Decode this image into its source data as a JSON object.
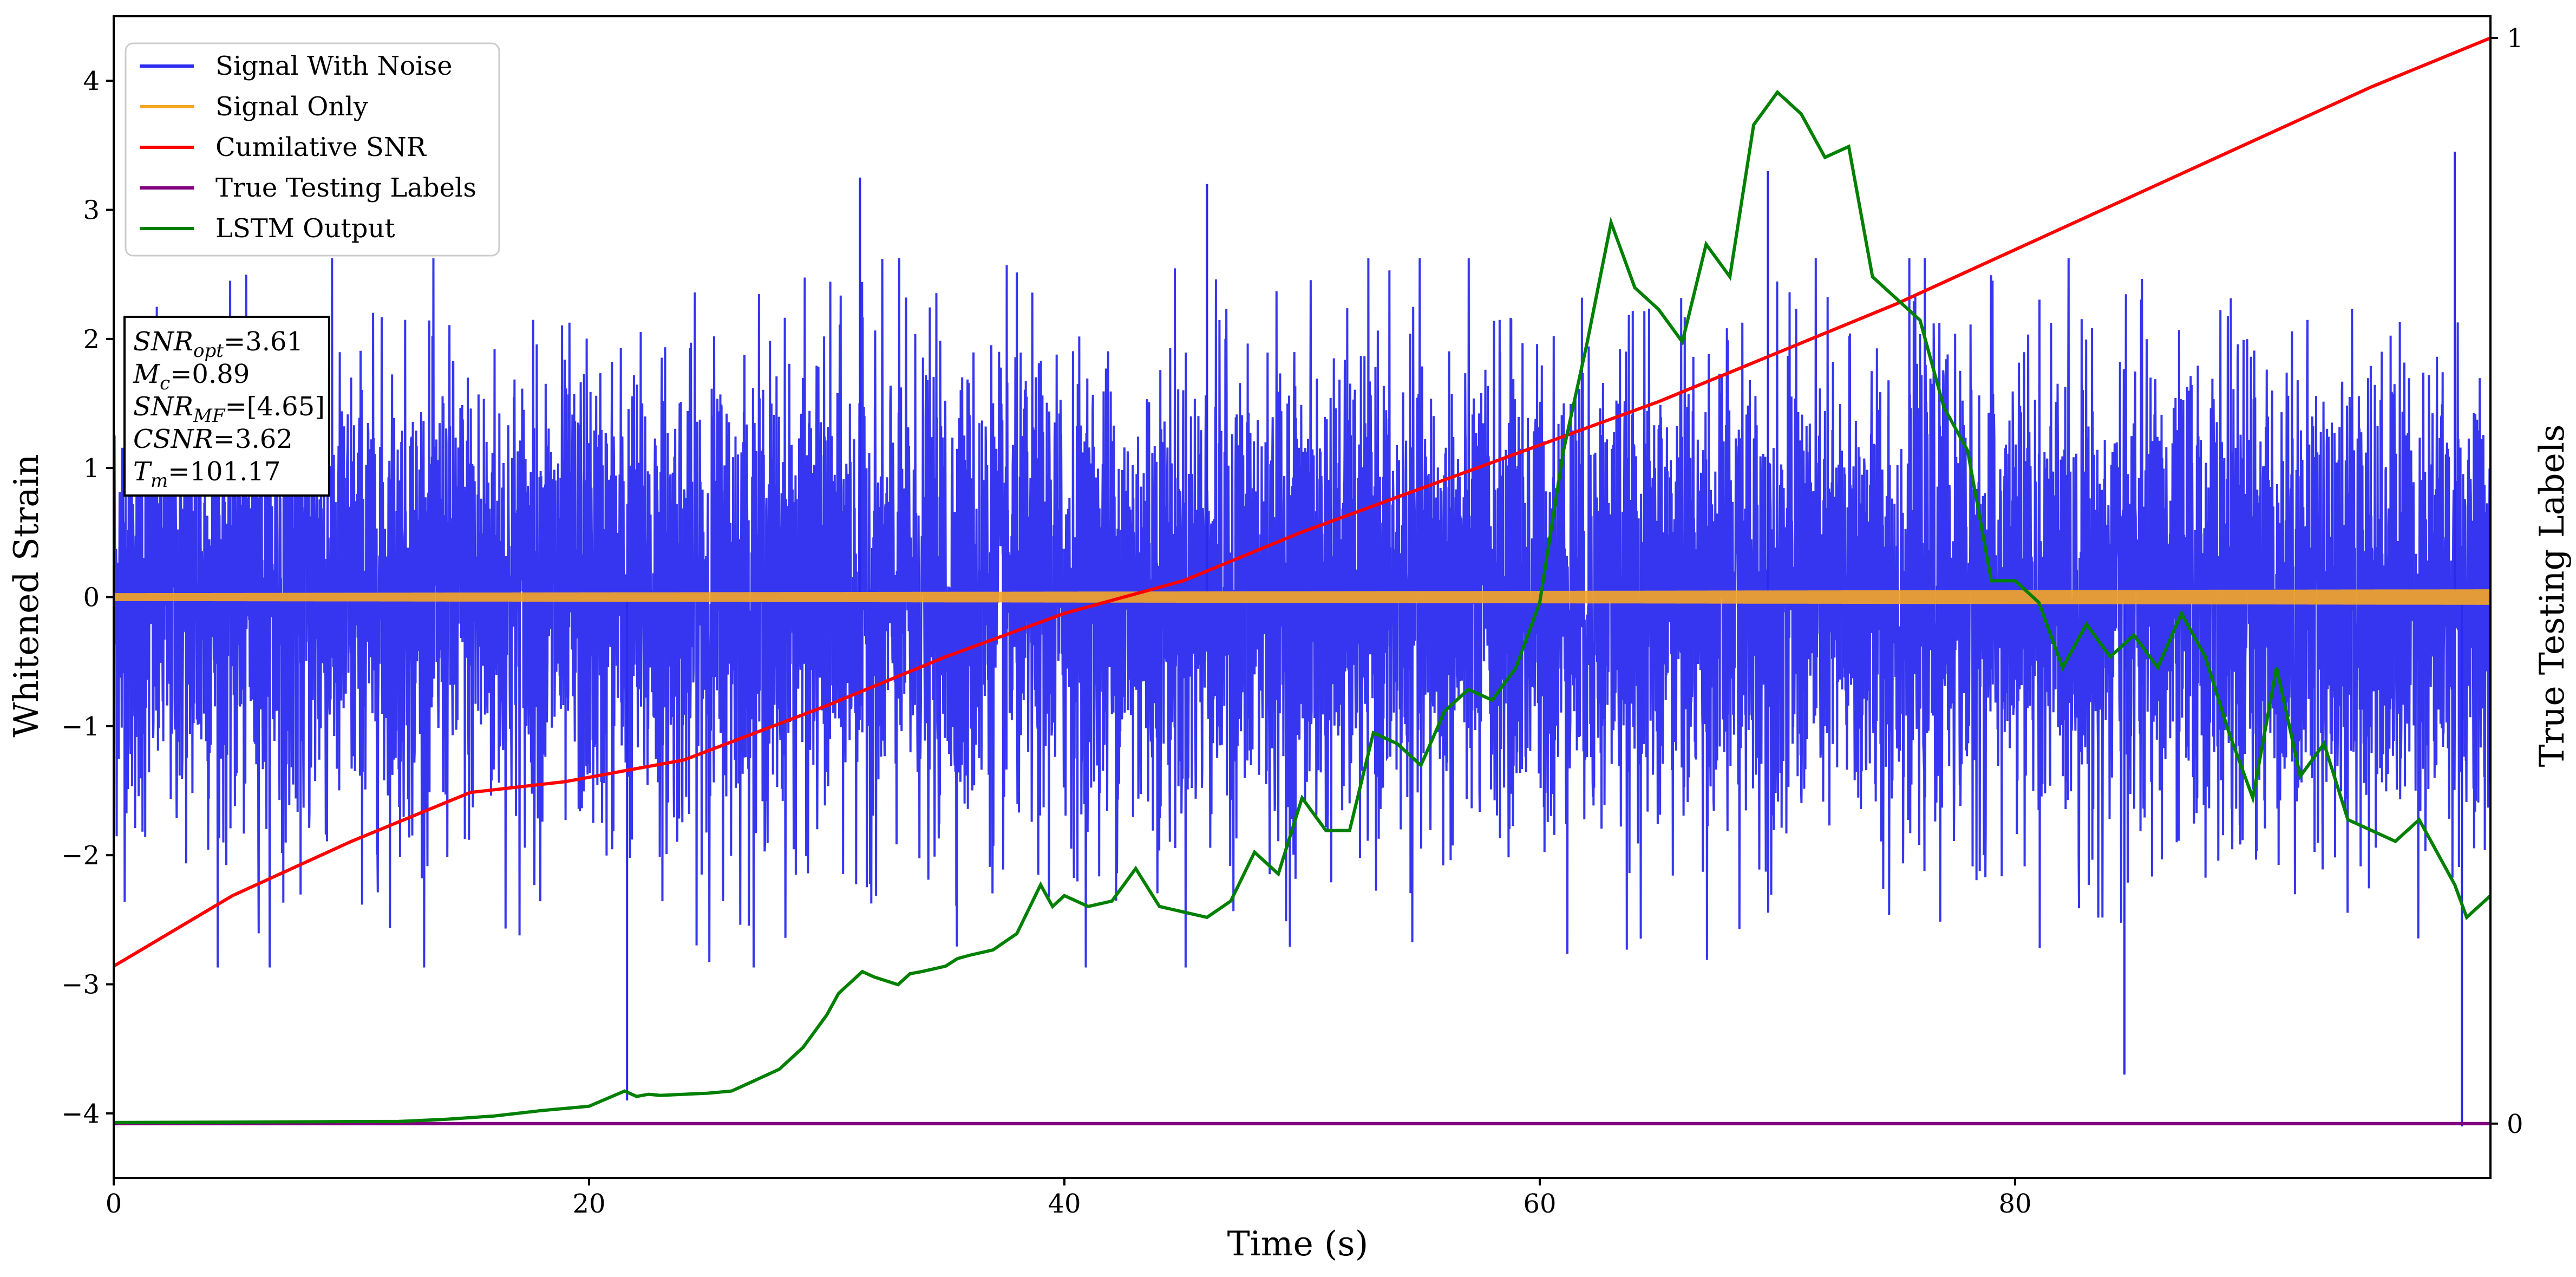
{
  "chart_data": {
    "type": "line",
    "xlabel": "Time (s)",
    "ylabel": "Whitened Strain",
    "y2label": "True Testing Labels",
    "xlim": [
      0,
      100
    ],
    "ylim": [
      -4.5,
      4.5
    ],
    "y2lim": [
      -0.05,
      1.02
    ],
    "x_ticks": [
      0,
      20,
      40,
      60,
      80
    ],
    "y_ticks": [
      -4,
      -3,
      -2,
      -1,
      0,
      1,
      2,
      3,
      4
    ],
    "y2_ticks": [
      0,
      1
    ],
    "grid": false,
    "legend_position": "top-left",
    "legend": [
      {
        "label": "Signal With Noise",
        "color": "#2b2bef"
      },
      {
        "label": "Signal Only",
        "color": "#f5a623"
      },
      {
        "label": "Cumilative SNR",
        "color": "#ff0000"
      },
      {
        "label": "True Testing Labels",
        "color": "#800080"
      },
      {
        "label": "LSTM Output",
        "color": "#008000"
      }
    ],
    "series": [
      {
        "name": "Signal With Noise",
        "axis": "left",
        "color": "#2b2bef",
        "style": "dense noise band",
        "x_range": [
          0,
          100
        ],
        "typical_band": [
          -1.6,
          1.6
        ],
        "peak_range": [
          -4.1,
          3.5
        ],
        "peaks": [
          {
            "x": 21.6,
            "y": -3.9
          },
          {
            "x": 31.4,
            "y": 3.25
          },
          {
            "x": 46.0,
            "y": 3.2
          },
          {
            "x": 69.6,
            "y": 3.3
          },
          {
            "x": 84.6,
            "y": -3.7
          },
          {
            "x": 98.5,
            "y": 3.45
          },
          {
            "x": 98.8,
            "y": -4.1
          }
        ]
      },
      {
        "name": "Signal Only",
        "axis": "left",
        "color": "#f5a623",
        "style": "oscillation",
        "x_range": [
          0,
          100
        ],
        "amplitude": [
          0.03,
          0.06
        ]
      },
      {
        "name": "Cumilative SNR",
        "axis": "right",
        "color": "#ff0000",
        "x": [
          0,
          5,
          10,
          15,
          19,
          24,
          30,
          35,
          40,
          45,
          50,
          55,
          60,
          65,
          70,
          75,
          80,
          85,
          90,
          95,
          100
        ],
        "y": [
          0.145,
          0.21,
          0.26,
          0.305,
          0.315,
          0.335,
          0.385,
          0.43,
          0.47,
          0.5,
          0.545,
          0.585,
          0.625,
          0.665,
          0.71,
          0.755,
          0.805,
          0.855,
          0.905,
          0.955,
          1.0
        ]
      },
      {
        "name": "True Testing Labels",
        "axis": "right",
        "color": "#800080",
        "x": [
          0,
          100
        ],
        "y": [
          0,
          0
        ]
      },
      {
        "name": "LSTM Output",
        "axis": "right",
        "color": "#008000",
        "x": [
          0,
          12,
          14,
          16,
          18,
          20,
          21.5,
          22,
          22.5,
          23,
          24,
          25,
          26,
          27,
          28,
          29,
          30,
          30.5,
          31,
          31.5,
          32,
          33,
          33.5,
          34,
          35,
          35.5,
          36,
          37,
          38,
          39,
          39.5,
          40,
          41,
          42,
          43,
          44,
          45,
          46,
          47,
          48,
          49,
          50,
          51,
          52,
          53,
          54,
          55,
          56,
          57,
          58,
          59,
          60,
          61,
          62,
          63,
          63.5,
          64,
          65,
          66,
          67,
          68,
          69,
          70,
          71,
          72,
          73,
          74,
          75,
          76,
          77,
          78,
          79,
          80,
          81,
          82,
          83,
          84,
          85,
          86,
          87,
          88,
          89,
          90,
          91,
          92,
          93,
          94,
          95,
          96,
          97,
          98,
          98.5,
          99,
          100
        ],
        "y": [
          0.001,
          0.002,
          0.004,
          0.007,
          0.012,
          0.016,
          0.03,
          0.025,
          0.027,
          0.026,
          0.027,
          0.028,
          0.03,
          0.04,
          0.05,
          0.07,
          0.1,
          0.12,
          0.13,
          0.14,
          0.135,
          0.128,
          0.138,
          0.14,
          0.145,
          0.152,
          0.155,
          0.16,
          0.175,
          0.22,
          0.2,
          0.21,
          0.2,
          0.205,
          0.235,
          0.2,
          0.195,
          0.19,
          0.205,
          0.25,
          0.23,
          0.3,
          0.27,
          0.27,
          0.36,
          0.35,
          0.33,
          0.38,
          0.4,
          0.39,
          0.42,
          0.48,
          0.62,
          0.72,
          0.83,
          0.8,
          0.77,
          0.75,
          0.72,
          0.81,
          0.78,
          0.92,
          0.95,
          0.93,
          0.89,
          0.9,
          0.78,
          0.76,
          0.74,
          0.66,
          0.62,
          0.5,
          0.5,
          0.48,
          0.42,
          0.46,
          0.43,
          0.45,
          0.42,
          0.47,
          0.43,
          0.36,
          0.3,
          0.42,
          0.32,
          0.35,
          0.28,
          0.27,
          0.26,
          0.28,
          0.24,
          0.22,
          0.19,
          0.21
        ]
      }
    ],
    "annotations": {
      "stats_box": [
        {
          "var": "SNR",
          "sub": "opt",
          "val": "=3.61"
        },
        {
          "var": "M",
          "sub": "c",
          "val": "=0.89"
        },
        {
          "var": "SNR",
          "sub": "MF",
          "val": "=[4.65]"
        },
        {
          "var": "CSNR",
          "sub": "",
          "val": "=3.62"
        },
        {
          "var": "T",
          "sub": "m",
          "val": "=101.17"
        }
      ]
    }
  }
}
